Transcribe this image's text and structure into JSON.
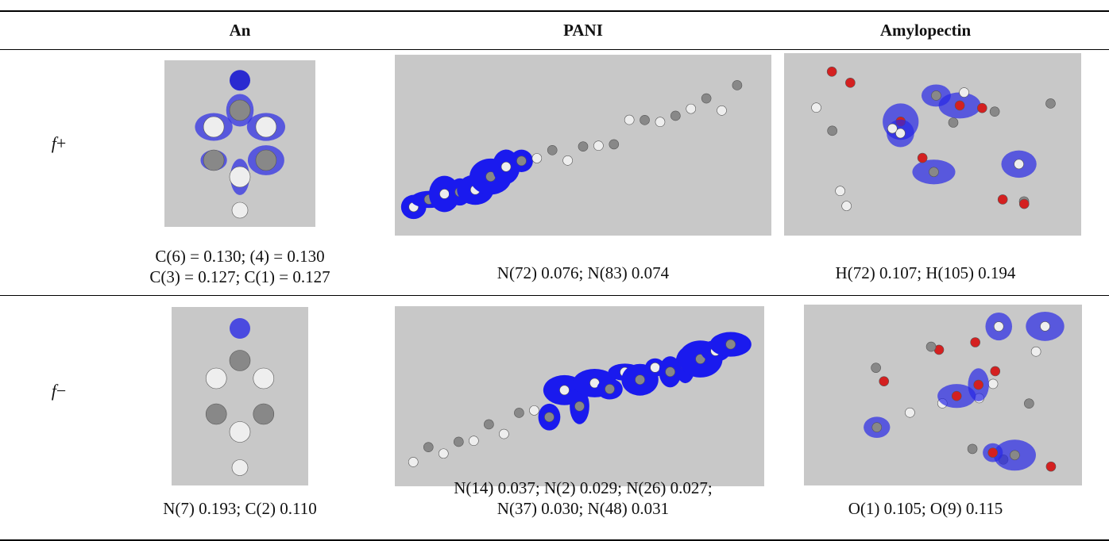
{
  "table": {
    "columns": [
      "An",
      "PANI",
      "Amylopectin"
    ],
    "rows": [
      {
        "symbol": "f",
        "sign": "+",
        "cells": [
          [
            "C(6) = 0.130; (4) = 0.130",
            "C(3) = 0.127; C(1) = 0.127"
          ],
          [
            "N(72) 0.076; N(83) 0.074"
          ],
          [
            "H(72) 0.107; H(105) 0.194"
          ]
        ]
      },
      {
        "symbol": "f",
        "sign": "−",
        "cells": [
          [
            "N(7) 0.193; C(2) 0.110"
          ],
          [
            "N(14) 0.037; N(2) 0.029; N(26) 0.027;",
            "N(37) 0.030; N(48) 0.031"
          ],
          [
            "O(1) 0.105; O(9) 0.115"
          ]
        ]
      }
    ]
  }
}
